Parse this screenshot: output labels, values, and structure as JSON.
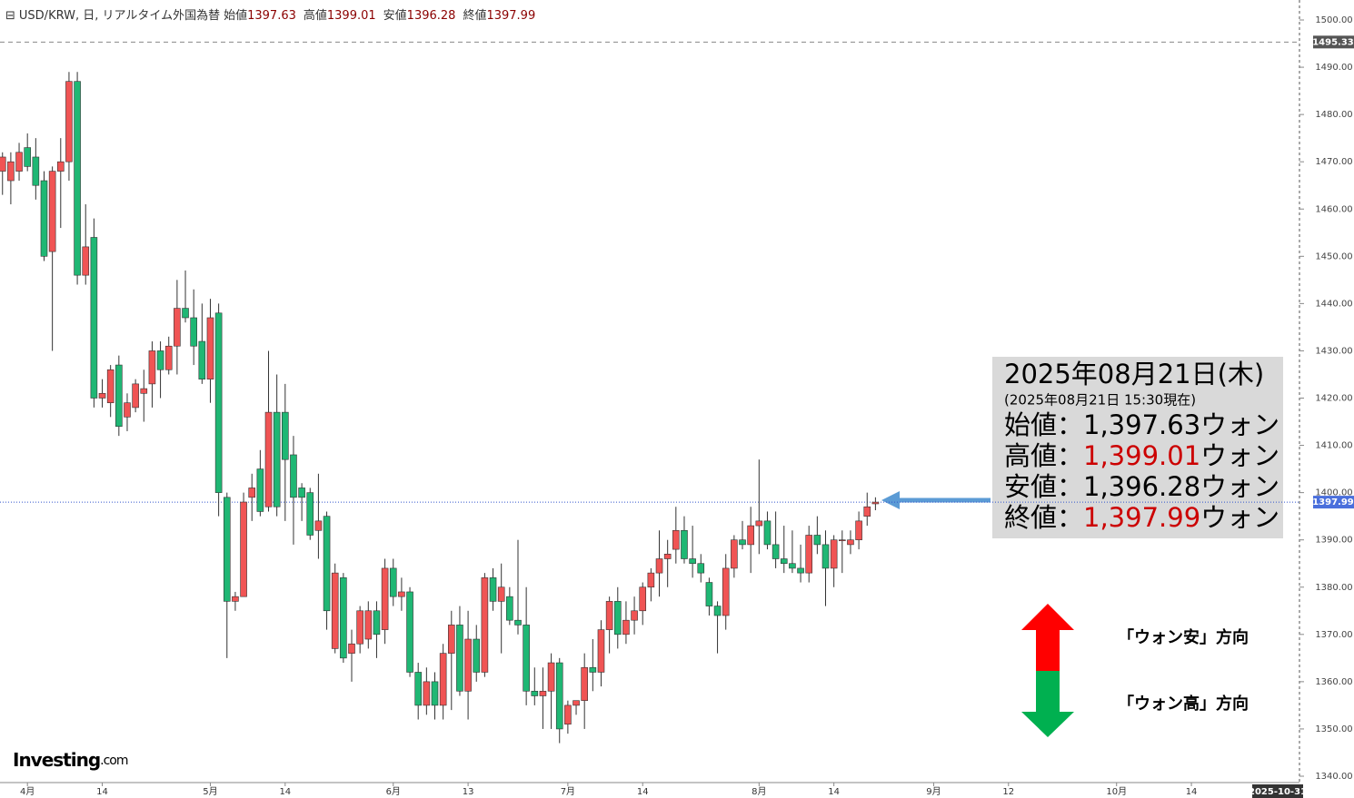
{
  "chart_data": {
    "type": "candlestick",
    "symbol_title": "USD/KRW, 日, リアルタイム外国為替",
    "ohlc_legend": [
      {
        "label": "始値",
        "value": 1397.63
      },
      {
        "label": "高値",
        "value": 1399.01
      },
      {
        "label": "安値",
        "value": 1396.28
      },
      {
        "label": "終値",
        "value": 1397.99
      }
    ],
    "up_color": "#f05454",
    "down_color": "#1fb774",
    "text_color": "#8b0000",
    "x": [
      -3,
      -2,
      -1,
      0,
      1,
      2,
      3,
      4,
      5,
      6,
      7,
      8,
      9,
      10,
      11,
      12,
      13,
      14,
      15,
      16,
      17,
      18,
      19,
      20,
      21,
      22,
      23,
      24,
      25,
      26,
      27,
      28,
      29,
      30,
      31,
      32,
      33,
      34,
      35,
      36,
      37,
      38,
      39,
      40,
      41,
      42,
      43,
      44,
      45,
      46,
      47,
      48,
      49,
      50,
      51,
      52,
      53,
      54,
      55,
      56,
      57,
      58,
      59,
      60,
      61,
      62,
      63,
      64,
      65,
      66,
      67,
      68,
      69,
      70,
      71,
      72,
      73,
      74,
      75,
      76,
      77,
      78,
      79,
      80,
      81,
      82,
      83,
      84,
      85,
      86,
      87,
      88,
      89,
      90,
      91,
      92,
      93,
      94,
      95,
      96,
      97,
      98,
      99,
      100,
      101,
      102
    ],
    "open": [
      1468,
      1466,
      1468,
      1473,
      1471,
      1466,
      1451,
      1468,
      1470,
      1487,
      1446,
      1454,
      1420,
      1419,
      1427,
      1416,
      1418,
      1421,
      1423,
      1430,
      1426,
      1431,
      1439,
      1437,
      1432,
      1424,
      1438,
      1399,
      1377,
      1378,
      1399,
      1405,
      1397,
      1417,
      1417,
      1408,
      1401,
      1400,
      1392,
      1395,
      1367,
      1382,
      1366,
      1368,
      1369,
      1375,
      1371,
      1384,
      1378,
      1379,
      1362,
      1355,
      1360,
      1355,
      1366,
      1372,
      1358,
      1369,
      1362,
      1382,
      1377,
      1378,
      1373,
      1372,
      1358,
      1357,
      1358,
      1364,
      1351,
      1355,
      1356,
      1363,
      1362,
      1371,
      1377,
      1370,
      1373,
      1375,
      1380,
      1383,
      1386,
      1388,
      1392,
      1386,
      1385,
      1381,
      1376,
      1374,
      1384,
      1390,
      1389,
      1393,
      1394,
      1389,
      1386,
      1385,
      1384,
      1383,
      1391,
      1389,
      1384,
      1390,
      1389,
      1390,
      1395,
      1397.63
    ],
    "high": [
      1472,
      1472,
      1474,
      1476,
      1475,
      1468,
      1469,
      1475,
      1489,
      1489,
      1461,
      1458,
      1424,
      1427,
      1429,
      1421,
      1424,
      1426,
      1432,
      1432,
      1433,
      1445,
      1447,
      1443,
      1440,
      1441,
      1440,
      1400,
      1379,
      1400,
      1404,
      1409,
      1430,
      1425,
      1423,
      1412,
      1402,
      1401,
      1404,
      1396,
      1385,
      1383,
      1371,
      1376,
      1377,
      1377,
      1386,
      1386,
      1382,
      1380,
      1364,
      1363,
      1362,
      1368,
      1375,
      1376,
      1375,
      1372,
      1383,
      1384,
      1385,
      1380,
      1390,
      1380,
      1363,
      1363,
      1366,
      1365,
      1356,
      1356,
      1366,
      1369,
      1373,
      1378,
      1380,
      1377,
      1378,
      1381,
      1384,
      1392,
      1390,
      1397,
      1395,
      1393,
      1387,
      1382,
      1377,
      1387,
      1391,
      1394,
      1397,
      1407,
      1396,
      1396,
      1393,
      1392,
      1389,
      1393,
      1395,
      1392,
      1391,
      1392,
      1392,
      1396,
      1400,
      1399.01
    ],
    "low": [
      1463,
      1461,
      1466,
      1468,
      1462,
      1449,
      1430,
      1456,
      1466,
      1444,
      1444,
      1418,
      1418,
      1416,
      1412,
      1413,
      1417,
      1415,
      1418,
      1420,
      1425,
      1425,
      1436,
      1427,
      1423,
      1419,
      1395,
      1365,
      1375,
      1378,
      1394,
      1395,
      1396,
      1395,
      1394,
      1389,
      1394,
      1390,
      1386,
      1371,
      1366,
      1364,
      1360,
      1366,
      1367,
      1365,
      1368,
      1376,
      1375,
      1361,
      1352,
      1353,
      1352,
      1352,
      1354,
      1357,
      1352,
      1360,
      1361,
      1375,
      1366,
      1372,
      1370,
      1355,
      1355,
      1350,
      1350,
      1347,
      1349,
      1353,
      1350,
      1358,
      1359,
      1366,
      1367,
      1368,
      1370,
      1372,
      1377,
      1378,
      1380,
      1385,
      1385,
      1382,
      1381,
      1374,
      1366,
      1371,
      1382,
      1388,
      1383,
      1387,
      1388,
      1384,
      1383,
      1383,
      1381,
      1381,
      1387,
      1376,
      1380,
      1383,
      1387,
      1388,
      1393,
      1396.28
    ],
    "close": [
      1471,
      1470,
      1472,
      1469,
      1465,
      1450,
      1468,
      1470,
      1487,
      1446,
      1452,
      1420,
      1421,
      1426,
      1414,
      1419,
      1423,
      1422,
      1430,
      1426,
      1431,
      1439,
      1437,
      1431,
      1424,
      1437,
      1400,
      1377,
      1378,
      1398,
      1401,
      1396,
      1417,
      1397,
      1407,
      1399,
      1399,
      1391,
      1394,
      1375,
      1383,
      1365,
      1368,
      1375,
      1375,
      1370,
      1384,
      1378,
      1379,
      1362,
      1355,
      1360,
      1355,
      1366,
      1372,
      1358,
      1369,
      1362,
      1382,
      1377,
      1380,
      1373,
      1372,
      1358,
      1357,
      1358,
      1364,
      1350,
      1355,
      1356,
      1363,
      1362,
      1371,
      1377,
      1370,
      1373,
      1375,
      1380,
      1383,
      1386,
      1387,
      1392,
      1386,
      1385,
      1383,
      1376,
      1374,
      1384,
      1390,
      1389,
      1393,
      1394,
      1389,
      1386,
      1385,
      1384,
      1383,
      1391,
      1389,
      1384,
      1390,
      1390,
      1390,
      1394,
      1397,
      1397.99
    ],
    "xlim": [
      -3.3,
      153
    ],
    "ylim": [
      1340,
      1500
    ],
    "yticks": [
      {
        "value": 1340,
        "label": "1340.00"
      },
      {
        "value": 1350,
        "label": "1350.00"
      },
      {
        "value": 1360,
        "label": "1360.00"
      },
      {
        "value": 1370,
        "label": "1370.00"
      },
      {
        "value": 1380,
        "label": "1380.00"
      },
      {
        "value": 1390,
        "label": "1390.00"
      },
      {
        "value": 1400,
        "label": "1400.00"
      },
      {
        "value": 1410,
        "label": "1410.00"
      },
      {
        "value": 1420,
        "label": "1420.00"
      },
      {
        "value": 1430,
        "label": "1430.00"
      },
      {
        "value": 1440,
        "label": "1440.00"
      },
      {
        "value": 1450,
        "label": "1450.00"
      },
      {
        "value": 1460,
        "label": "1460.00"
      },
      {
        "value": 1470,
        "label": "1470.00"
      },
      {
        "value": 1480,
        "label": "1480.00"
      },
      {
        "value": 1490,
        "label": "1490.00"
      },
      {
        "value": 1500,
        "label": "1500.00"
      }
    ],
    "xticks": [
      {
        "value": 0,
        "label": "4月"
      },
      {
        "value": 9,
        "label": "14"
      },
      {
        "value": 22,
        "label": "5月"
      },
      {
        "value": 31,
        "label": "14"
      },
      {
        "value": 44,
        "label": "6月"
      },
      {
        "value": 53,
        "label": "13"
      },
      {
        "value": 65,
        "label": "7月"
      },
      {
        "value": 74,
        "label": "14"
      },
      {
        "value": 88,
        "label": "8月"
      },
      {
        "value": 97,
        "label": "14"
      },
      {
        "value": 109,
        "label": "9月"
      },
      {
        "value": 118,
        "label": "12"
      },
      {
        "value": 131,
        "label": "10月"
      },
      {
        "value": 140,
        "label": "14"
      }
    ],
    "x_end_label": {
      "value": 153,
      "label": "2025-10-31"
    },
    "price_lines": [
      {
        "value": 1495.33,
        "style": "dashed",
        "color": "#888888",
        "box_color": "#555555"
      },
      {
        "value": 1397.99,
        "style": "dotted",
        "color": "#3355cc",
        "box_color": "#4a6fdc"
      }
    ],
    "annotation": {
      "date": "2025年08月21日(木)",
      "as_of": "(2025年08月21日 15:30現在)",
      "lines": [
        {
          "label": "始値：",
          "value": "1,397.63",
          "unit": "ウォン",
          "value_color": "#000000"
        },
        {
          "label": "高値：",
          "value": "1,399.01",
          "unit": "ウォン",
          "value_color": "#cc0000"
        },
        {
          "label": "安値：",
          "value": "1,396.28",
          "unit": "ウォン",
          "value_color": "#000000"
        },
        {
          "label": "終値：",
          "value": "1,397.99",
          "unit": "ウォン",
          "value_color": "#cc0000"
        }
      ]
    },
    "direction_up": "「ウォン安」方向",
    "direction_down": "「ウォン高」方向",
    "brand": "Investing",
    "brand_suffix": ".com"
  }
}
